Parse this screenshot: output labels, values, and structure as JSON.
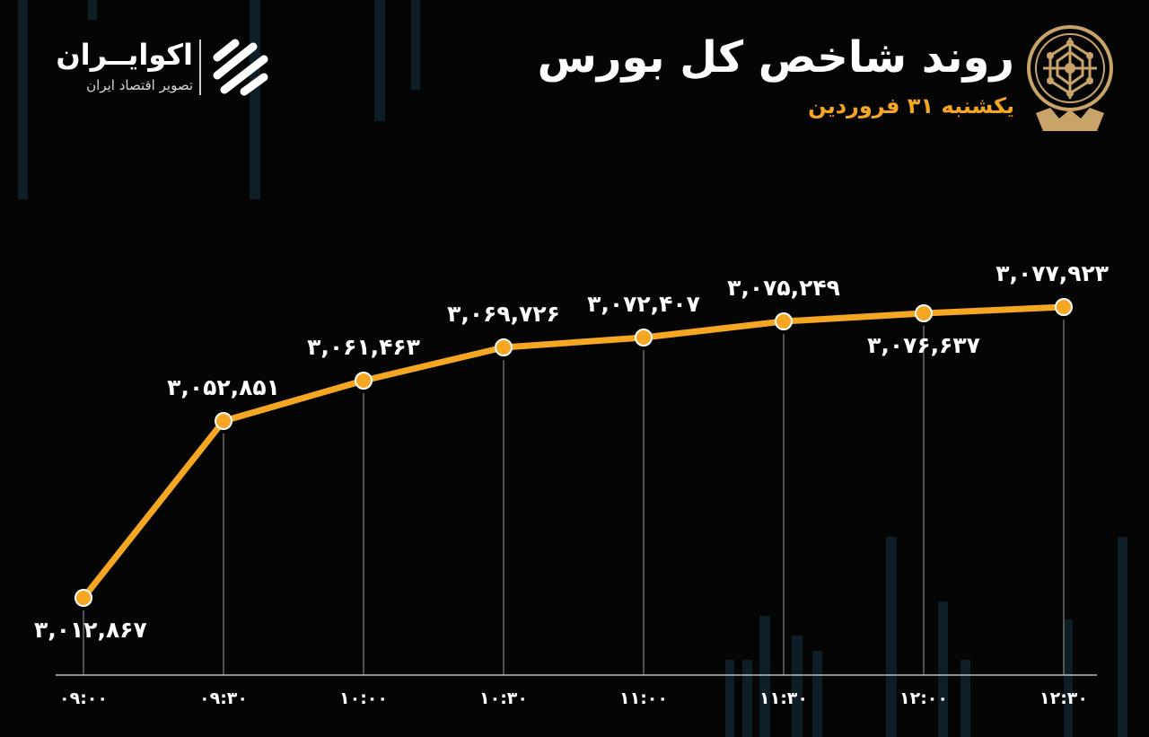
{
  "header": {
    "title": "روند شاخص کل بورس",
    "subtitle": "یکشنبه ۳۱ فروردین"
  },
  "brand": {
    "name": "اکوایــران",
    "tagline": "تصویر اقتصاد ایران",
    "icon": "ekoiran-logo-icon"
  },
  "seal": {
    "icon": "tehran-stock-exchange-seal-icon"
  },
  "colors": {
    "background": "#050505",
    "line": "#f5a623",
    "marker": "#f5a623",
    "guide": "#9a9a9a",
    "background_bars": "#0d1e26"
  },
  "chart_data": {
    "type": "line",
    "categories": [
      "۰۹:۰۰",
      "۰۹:۳۰",
      "۱۰:۰۰",
      "۱۰:۳۰",
      "۱۱:۰۰",
      "۱۱:۳۰",
      "۱۲:۰۰",
      "۱۲:۳۰"
    ],
    "values": [
      3012867,
      3052851,
      3061463,
      3069726,
      3072407,
      3075249,
      3076637,
      3077923
    ],
    "value_labels": [
      "۳,۰۱۲,۸۶۷",
      "۳,۰۵۲,۸۵۱",
      "۳,۰۶۱,۴۶۳",
      "۳,۰۶۹,۷۲۶",
      "۳,۰۷۲,۴۰۷",
      "۳,۰۷۵,۲۴۹",
      "۳,۰۷۶,۶۳۷",
      "۳,۰۷۷,۹۲۳"
    ],
    "label_placement": [
      "below",
      "above",
      "above",
      "above",
      "above",
      "above",
      "below",
      "above"
    ],
    "title": "روند شاخص کل بورس",
    "xlabel": "",
    "ylabel": "",
    "grid": false,
    "legend": "none"
  }
}
